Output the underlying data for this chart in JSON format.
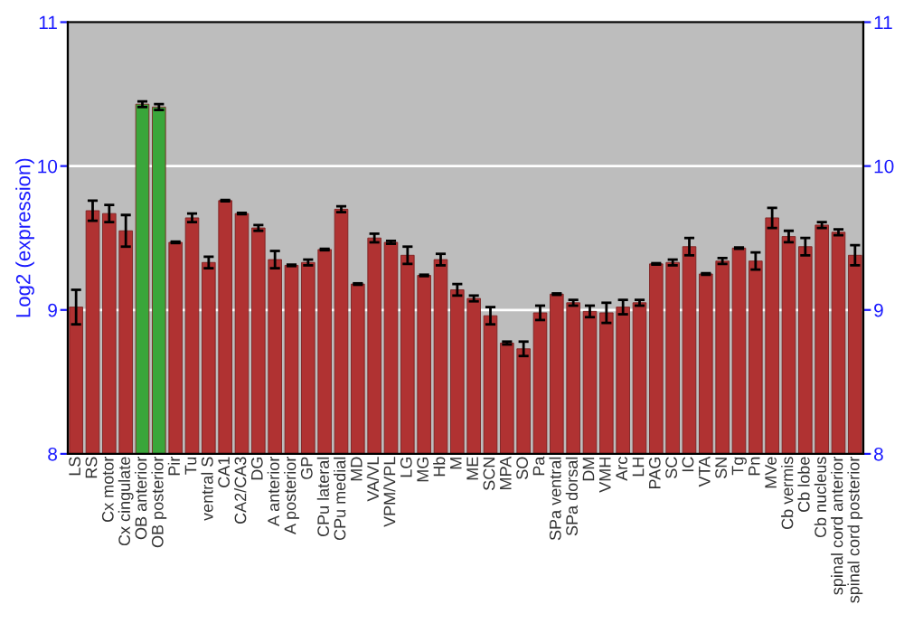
{
  "chart_data": {
    "type": "bar",
    "ylabel": "Log2 (expression)",
    "categories": [
      "LS",
      "RS",
      "Cx motor",
      "Cx cingulate",
      "OB anterior",
      "OB posterior",
      "Pir",
      "Tu",
      "ventral S",
      "CA1",
      "CA2/CA3",
      "DG",
      "A anterior",
      "A posterior",
      "GP",
      "CPu lateral",
      "CPu medial",
      "MD",
      "VA/VL",
      "VPM/VPL",
      "LG",
      "MG",
      "Hb",
      "M",
      "ME",
      "SCN",
      "MPA",
      "SO",
      "Pa",
      "SPa ventral",
      "SPa dorsal",
      "DM",
      "VMH",
      "Arc",
      "LH",
      "PAG",
      "SC",
      "IC",
      "VTA",
      "SN",
      "Tg",
      "Pn",
      "MVe",
      "Cb vermis",
      "Cb lobe",
      "Cb nucleus",
      "spinal cord anterior",
      "spinal cord posterior"
    ],
    "values": [
      9.02,
      9.69,
      9.67,
      9.55,
      10.43,
      10.41,
      9.47,
      9.64,
      9.33,
      9.76,
      9.67,
      9.57,
      9.35,
      9.31,
      9.33,
      9.42,
      9.7,
      9.18,
      9.5,
      9.47,
      9.38,
      9.24,
      9.35,
      9.14,
      9.08,
      8.96,
      8.77,
      8.73,
      8.98,
      9.11,
      9.05,
      8.99,
      8.98,
      9.02,
      9.05,
      9.32,
      9.33,
      9.44,
      9.25,
      9.34,
      9.43,
      9.34,
      9.64,
      9.51,
      9.44,
      9.59,
      9.54,
      9.38
    ],
    "errors": [
      0.12,
      0.07,
      0.06,
      0.11,
      0.02,
      0.02,
      0.005,
      0.03,
      0.04,
      0.005,
      0.005,
      0.02,
      0.06,
      0.005,
      0.02,
      0.005,
      0.02,
      0.005,
      0.03,
      0.01,
      0.06,
      0.005,
      0.04,
      0.04,
      0.02,
      0.06,
      0.01,
      0.05,
      0.05,
      0.005,
      0.02,
      0.04,
      0.07,
      0.05,
      0.02,
      0.005,
      0.02,
      0.06,
      0.005,
      0.02,
      0.005,
      0.06,
      0.07,
      0.04,
      0.06,
      0.02,
      0.02,
      0.07
    ],
    "colors": [
      "#b03232",
      "#b03232",
      "#b03232",
      "#b03232",
      "#3aa63a",
      "#3aa63a",
      "#b03232",
      "#b03232",
      "#b03232",
      "#b03232",
      "#b03232",
      "#b03232",
      "#b03232",
      "#b03232",
      "#b03232",
      "#b03232",
      "#b03232",
      "#b03232",
      "#b03232",
      "#b03232",
      "#b03232",
      "#b03232",
      "#b03232",
      "#b03232",
      "#b03232",
      "#b03232",
      "#b03232",
      "#b03232",
      "#b03232",
      "#b03232",
      "#b03232",
      "#b03232",
      "#b03232",
      "#b03232",
      "#b03232",
      "#b03232",
      "#b03232",
      "#b03232",
      "#b03232",
      "#b03232",
      "#b03232",
      "#b03232",
      "#b03232",
      "#b03232",
      "#b03232",
      "#b03232",
      "#b03232",
      "#b03232"
    ],
    "ylim": [
      8,
      11
    ],
    "yticks": [
      8,
      9,
      10,
      11
    ],
    "y2lim": [
      8,
      11
    ],
    "y2ticks": [
      8,
      9,
      10,
      11
    ],
    "grid": "y"
  }
}
